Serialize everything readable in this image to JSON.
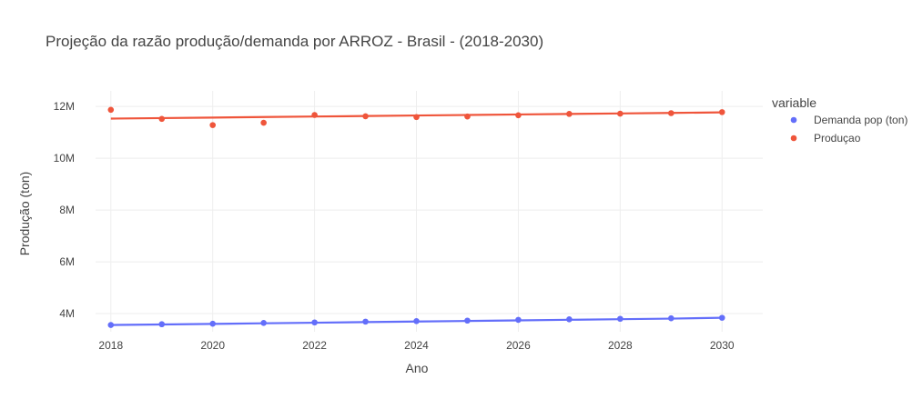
{
  "chart_data": {
    "type": "scatter",
    "title": "Projeção da razão produção/demanda por ARROZ - Brasil - (2018-2030)",
    "xlabel": "Ano",
    "ylabel": "Produção (ton)",
    "xlim": [
      2017.7,
      2030.8
    ],
    "ylim": [
      3300000,
      12600000
    ],
    "x_ticks": [
      2018,
      2020,
      2022,
      2024,
      2026,
      2028,
      2030
    ],
    "x_tick_labels": [
      "2018",
      "2020",
      "2022",
      "2024",
      "2026",
      "2028",
      "2030"
    ],
    "y_ticks": [
      4000000,
      6000000,
      8000000,
      10000000,
      12000000
    ],
    "y_tick_labels": [
      "4M",
      "6M",
      "8M",
      "10M",
      "12M"
    ],
    "grid": true,
    "legend": {
      "title": "variable",
      "placement": "right"
    },
    "x": [
      2018,
      2019,
      2020,
      2021,
      2022,
      2023,
      2024,
      2025,
      2026,
      2027,
      2028,
      2029,
      2030
    ],
    "series": [
      {
        "name": "Demanda pop (ton)",
        "color": "#636efa",
        "values": [
          3560000,
          3590000,
          3610000,
          3640000,
          3660000,
          3690000,
          3710000,
          3730000,
          3760000,
          3780000,
          3800000,
          3820000,
          3840000
        ],
        "trendline": [
          3560000,
          3582000,
          3604000,
          3627000,
          3649000,
          3672000,
          3694000,
          3717000,
          3739000,
          3762000,
          3784000,
          3807000,
          3840000
        ]
      },
      {
        "name": "Produçao",
        "color": "#ef553b",
        "values": [
          11870000,
          11520000,
          11280000,
          11370000,
          11670000,
          11620000,
          11590000,
          11610000,
          11660000,
          11710000,
          11720000,
          11740000,
          11780000
        ],
        "trendline": [
          11530000,
          11550000,
          11570000,
          11590000,
          11610000,
          11630000,
          11650000,
          11670000,
          11690000,
          11710000,
          11730000,
          11750000,
          11770000
        ]
      }
    ]
  }
}
